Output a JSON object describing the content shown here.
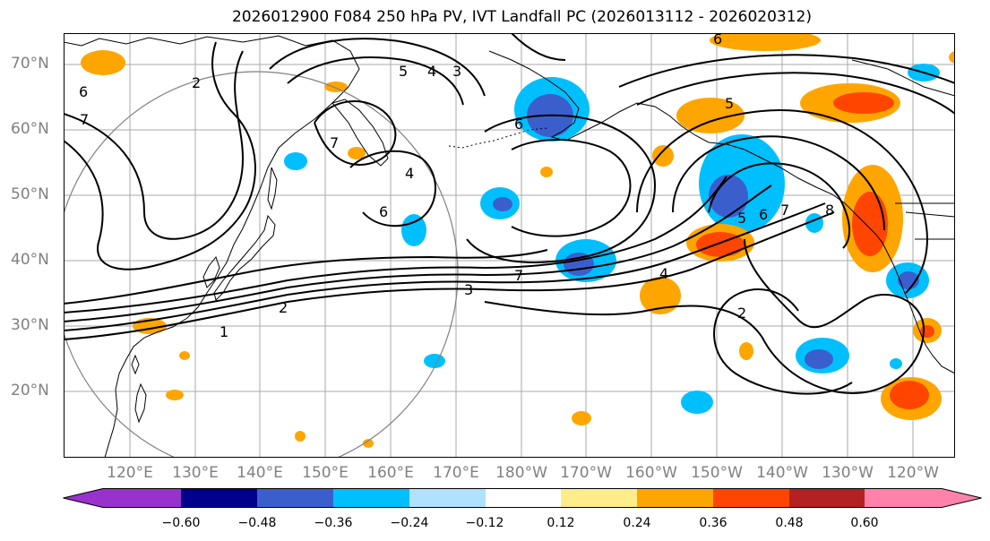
{
  "title": "2026012900 F084 250 hPa PV, IVT Landfall PC (2026013112 - 2026020312)",
  "latitude_labels": [
    "70°N",
    "60°N",
    "50°N",
    "40°N",
    "30°N",
    "20°N"
  ],
  "longitude_labels": [
    "120°E",
    "130°E",
    "140°E",
    "150°E",
    "160°E",
    "170°E",
    "180°W",
    "170°W",
    "160°W",
    "150°W",
    "140°W",
    "130°W",
    "120°W"
  ],
  "contour_labels": [
    "1",
    "2",
    "3",
    "4",
    "5",
    "6",
    "7",
    "8"
  ],
  "colorbar": {
    "ticks": [
      "−0.60",
      "−0.48",
      "−0.36",
      "−0.24",
      "−0.12",
      "0.12",
      "0.24",
      "0.36",
      "0.48",
      "0.60"
    ],
    "colors": [
      "#9932cc",
      "#00008b",
      "#3a5fcd",
      "#00bfff",
      "#b0e2ff",
      "#ffffff",
      "#ffec8b",
      "#ffa500",
      "#ff4500",
      "#b22222",
      "#ff82ab"
    ]
  },
  "colors": {
    "neg_strong": "#3a5fcd",
    "neg_mid": "#00bfff",
    "neg_weak": "#b0e2ff",
    "pos_weak": "#ffec8b",
    "pos_mid": "#ffa500",
    "pos_strong": "#ff4500",
    "grid": "#a9a9a9",
    "contour": "#000000",
    "coast": "#000000",
    "circle": "#808080"
  }
}
